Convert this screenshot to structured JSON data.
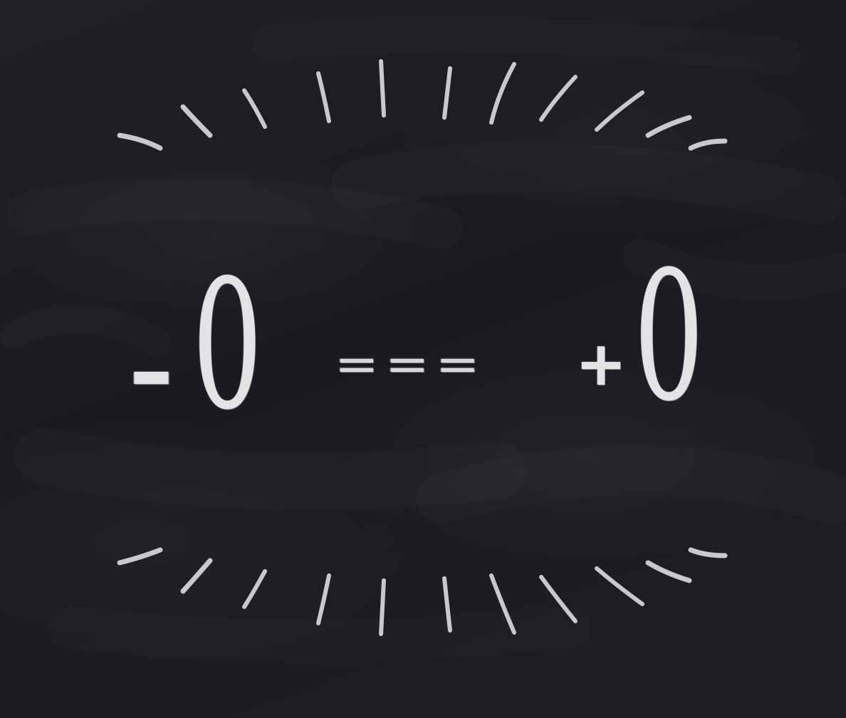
{
  "equation": {
    "minus": "-",
    "left_zero": "0",
    "operator": "===",
    "plus": "+",
    "right_zero": "0"
  },
  "colors": {
    "background": "#1c1d21",
    "chalk": "#e3e3e6",
    "ray_chalk": "#c9c9cd"
  }
}
